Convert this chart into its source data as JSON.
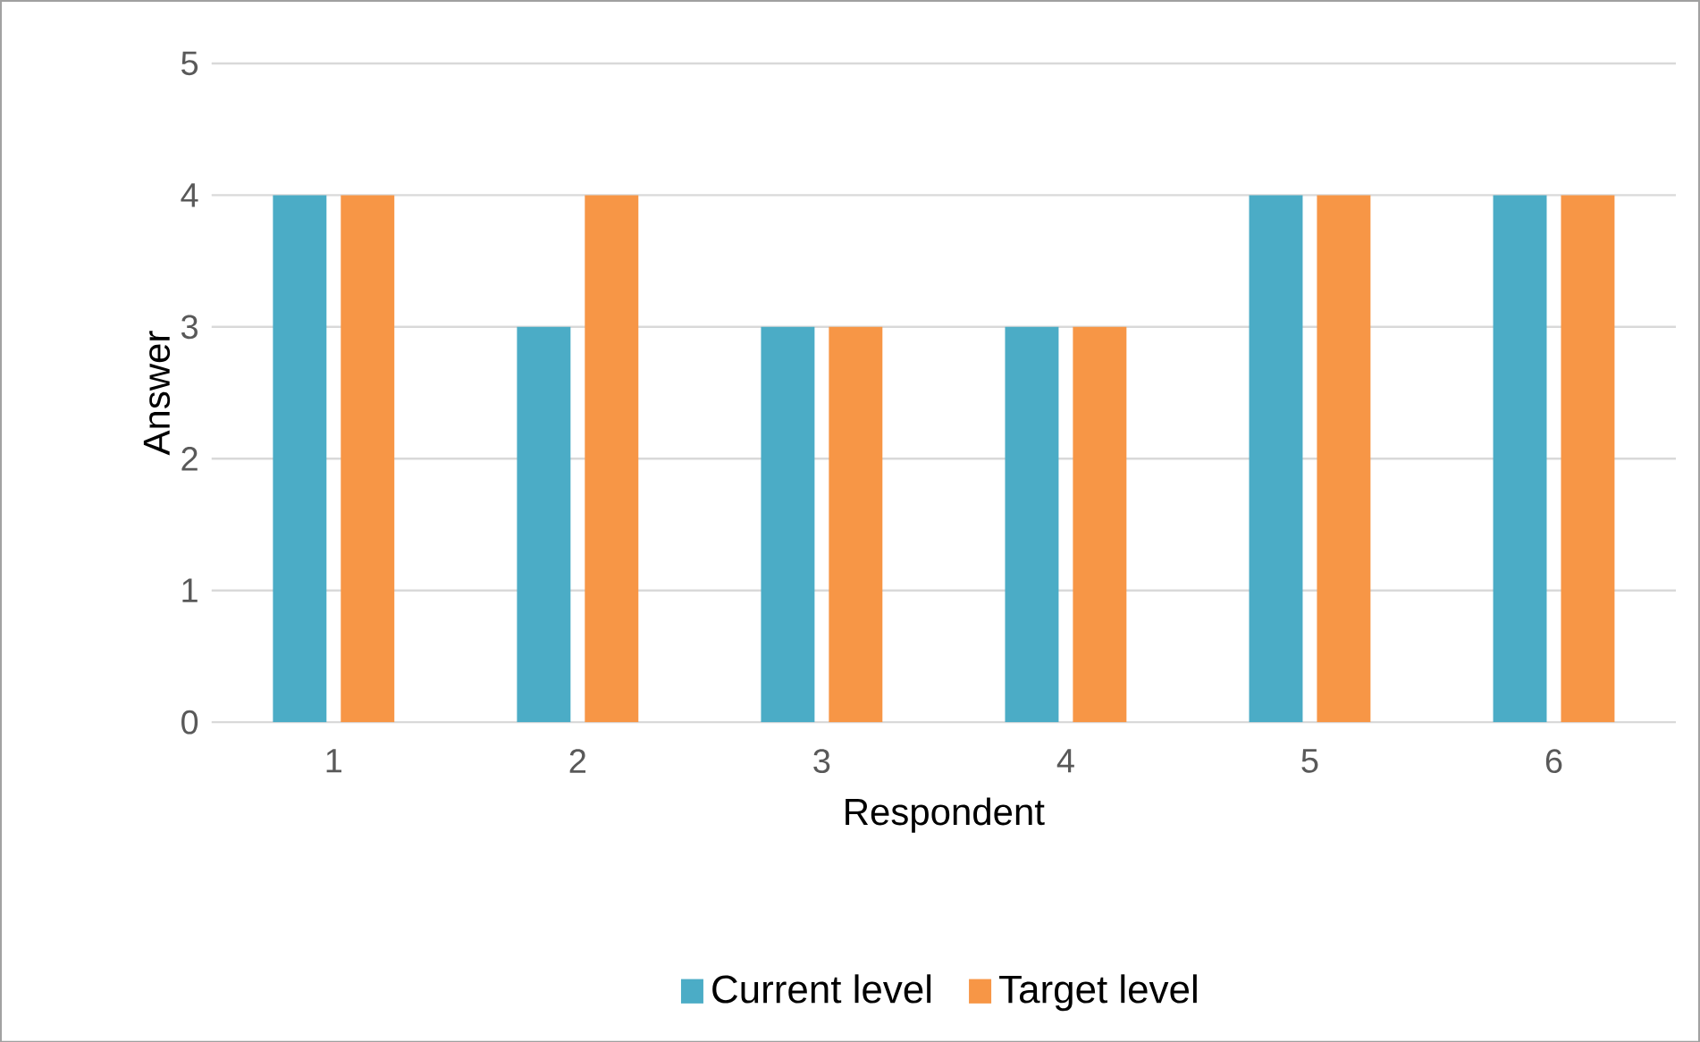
{
  "chart_data": {
    "type": "bar",
    "xlabel": "Respondent",
    "ylabel": "Answer",
    "categories": [
      "1",
      "2",
      "3",
      "4",
      "5",
      "6"
    ],
    "series": [
      {
        "name": "Current level",
        "color": "#4bacc6",
        "values": [
          4,
          3,
          3,
          3,
          4,
          4
        ]
      },
      {
        "name": "Target level",
        "color": "#f79646",
        "values": [
          4,
          4,
          3,
          3,
          4,
          4
        ]
      }
    ],
    "ylim": [
      0,
      5
    ],
    "yticks": [
      0,
      1,
      2,
      3,
      4,
      5
    ],
    "grid": "y",
    "legend": "bottom"
  }
}
